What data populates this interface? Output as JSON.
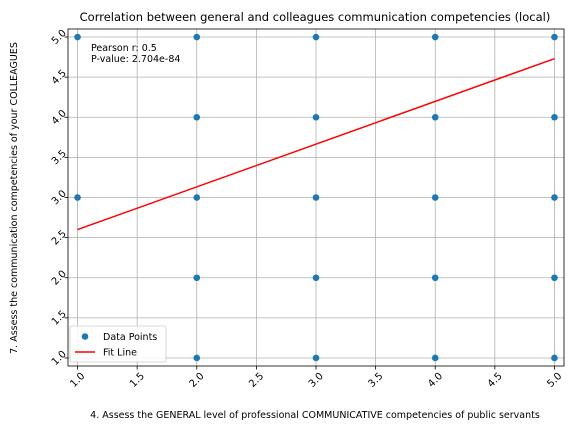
{
  "chart_data": {
    "type": "scatter",
    "title": "Correlation between general and colleagues communication competencies (local)",
    "xlabel": "4. Assess the GENERAL level of professional COMMUNICATIVE competencies of public servants",
    "ylabel": "7. Assess the communication competencies of your COLLEAGUES",
    "xlim": [
      0.92,
      5.08
    ],
    "ylim": [
      0.9,
      5.1
    ],
    "xticks": [
      "1.0",
      "1.5",
      "2.0",
      "2.5",
      "3.0",
      "3.5",
      "4.0",
      "4.5",
      "5.0"
    ],
    "yticks": [
      "1.0",
      "1.5",
      "2.0",
      "2.5",
      "3.0",
      "3.5",
      "4.0",
      "4.5",
      "5.0"
    ],
    "grid": true,
    "legend_position": "lower-left",
    "series": [
      {
        "name": "Data Points",
        "kind": "scatter",
        "color": "#1f77b4",
        "points": [
          [
            1,
            3
          ],
          [
            1,
            5
          ],
          [
            2,
            1
          ],
          [
            2,
            2
          ],
          [
            2,
            3
          ],
          [
            2,
            4
          ],
          [
            2,
            5
          ],
          [
            3,
            1
          ],
          [
            3,
            2
          ],
          [
            3,
            3
          ],
          [
            3,
            4
          ],
          [
            3,
            5
          ],
          [
            4,
            1
          ],
          [
            4,
            2
          ],
          [
            4,
            3
          ],
          [
            4,
            4
          ],
          [
            4,
            5
          ],
          [
            5,
            1
          ],
          [
            5,
            2
          ],
          [
            5,
            3
          ],
          [
            5,
            4
          ],
          [
            5,
            5
          ]
        ]
      },
      {
        "name": "Fit Line",
        "kind": "line",
        "color": "#ff0000",
        "points": [
          [
            1,
            2.6
          ],
          [
            5,
            4.73
          ]
        ]
      }
    ],
    "annotations": [
      "Pearson r: 0.5",
      "P-value: 2.704e-84"
    ]
  }
}
